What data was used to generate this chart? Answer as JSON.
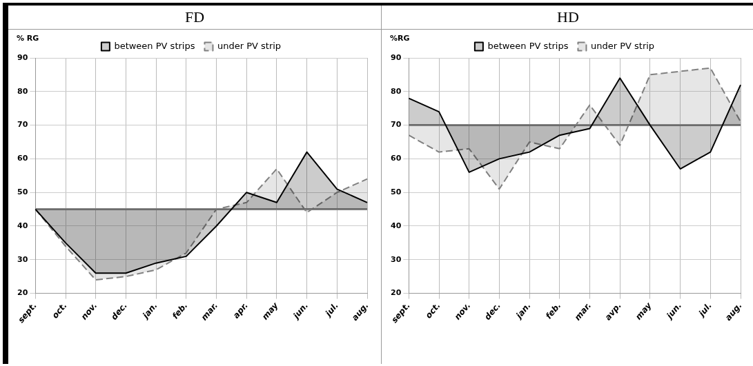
{
  "chart_data": [
    {
      "type": "line",
      "title": "FD",
      "ylabel": "% RG",
      "categories": [
        "sept.",
        "oct.",
        "nov.",
        "dec.",
        "jan.",
        "feb.",
        "mar.",
        "apr.",
        "may",
        "jun.",
        "jul.",
        "aug."
      ],
      "series": [
        {
          "name": "between PV strips",
          "color": "#000000",
          "line_style": "solid",
          "values": [
            45,
            35,
            26,
            26,
            29,
            31,
            40,
            50,
            47,
            62,
            51,
            47
          ]
        },
        {
          "name": "under PV strip",
          "color": "#808080",
          "line_style": "dashed",
          "values": [
            45,
            34,
            24,
            25,
            27,
            32,
            45,
            47,
            57,
            44,
            50,
            54
          ]
        }
      ],
      "ref_lines": [
        {
          "axis": "y",
          "value": 45,
          "color": "#808080"
        }
      ],
      "ylim": [
        20,
        90
      ],
      "yticks": [
        20,
        30,
        40,
        50,
        60,
        70,
        80,
        90
      ],
      "grid": true,
      "legend": "top",
      "marker": "none"
    },
    {
      "type": "line",
      "title": "HD",
      "ylabel": "%RG",
      "categories": [
        "sept.",
        "oct.",
        "nov.",
        "dec.",
        "jan.",
        "feb.",
        "mar.",
        "avp.",
        "may",
        "jun.",
        "jul.",
        "aug."
      ],
      "series": [
        {
          "name": "between PV strips",
          "color": "#000000",
          "line_style": "solid",
          "values": [
            78,
            74,
            56,
            60,
            62,
            67,
            69,
            84,
            70,
            57,
            62,
            82
          ]
        },
        {
          "name": "under PV strip",
          "color": "#808080",
          "line_style": "dashed",
          "values": [
            67,
            62,
            63,
            51,
            65,
            63,
            76,
            64,
            85,
            86,
            87,
            71
          ]
        }
      ],
      "ref_lines": [
        {
          "axis": "y",
          "value": 70,
          "color": "#808080"
        }
      ],
      "ylim": [
        20,
        90
      ],
      "yticks": [
        20,
        30,
        40,
        50,
        60,
        70,
        80,
        90
      ],
      "grid": true,
      "legend": "top",
      "marker": "none"
    }
  ]
}
